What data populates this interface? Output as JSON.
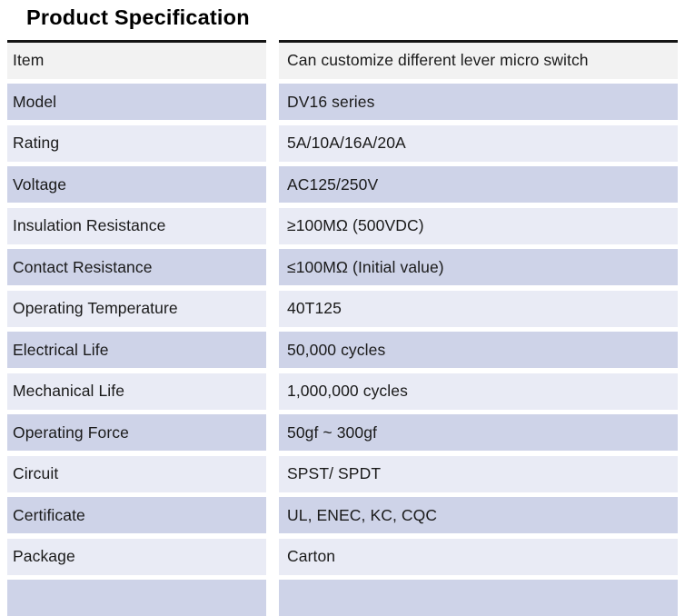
{
  "title": "Product Specification",
  "colors": {
    "header_row_bg": "#f2f2f2",
    "light_row_bg": "#e9ebf5",
    "accent_row_bg": "#ced3e8",
    "top_border": "#141414",
    "text": "#1a1a1a"
  },
  "spec_table": {
    "rows": [
      {
        "label": "Item",
        "value": "Can customize different lever micro switch"
      },
      {
        "label": "Model",
        "value": "DV16 series"
      },
      {
        "label": "Rating",
        "value": "5A/10A/16A/20A"
      },
      {
        "label": "Voltage",
        "value": "AC125/250V"
      },
      {
        "label": "Insulation Resistance",
        "value": "≥100MΩ (500VDC)"
      },
      {
        "label": "Contact Resistance",
        "value": "≤100MΩ (Initial value)"
      },
      {
        "label": "Operating Temperature",
        "value": "40T125"
      },
      {
        "label": "Electrical Life",
        "value": "50,000 cycles"
      },
      {
        "label": "Mechanical Life",
        "value": "1,000,000 cycles"
      },
      {
        "label": "Operating Force",
        "value": "50gf ~ 300gf"
      },
      {
        "label": "Circuit",
        "value": "SPST/ SPDT"
      },
      {
        "label": "Certificate",
        "value": "UL, ENEC, KC, CQC"
      },
      {
        "label": "Package",
        "value": "Carton"
      }
    ]
  }
}
